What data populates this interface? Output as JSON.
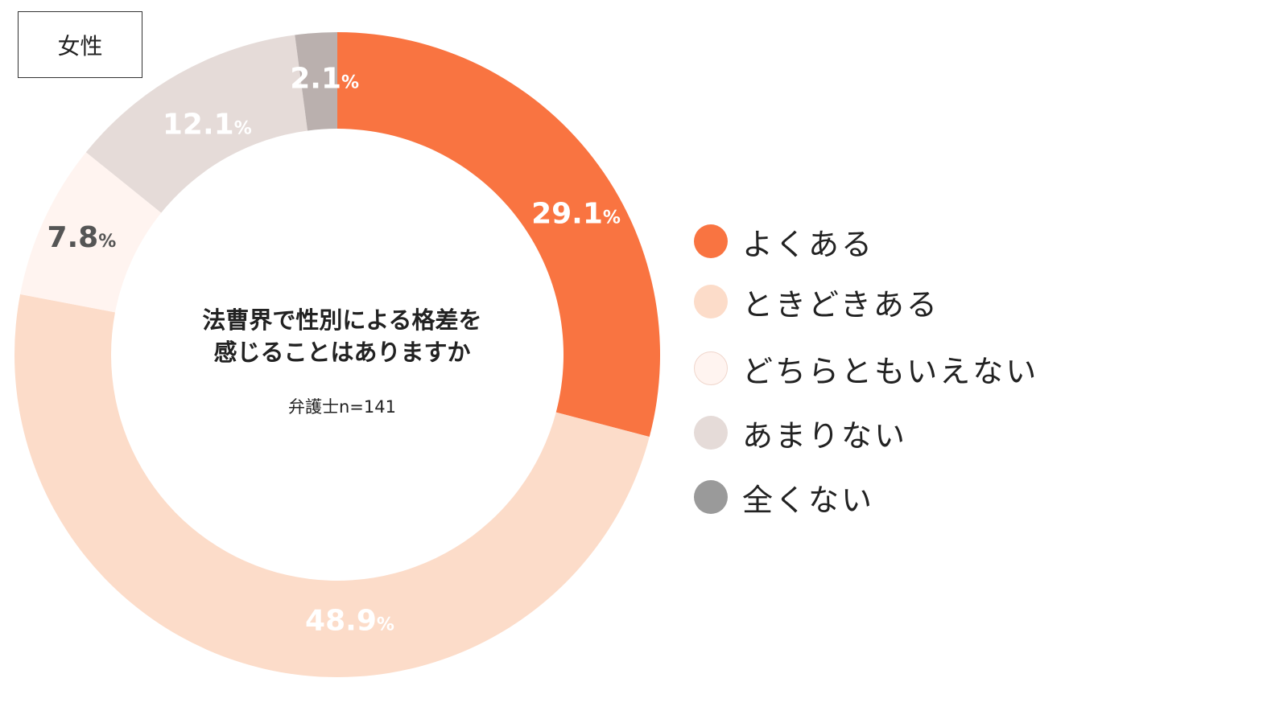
{
  "group_label": "女性",
  "chart_data": {
    "type": "pie",
    "donut": true,
    "center_title_lines": [
      "法曹界で性別による格差を",
      "感じることはありますか"
    ],
    "center_sample": "弁護士n=141",
    "percent_suffix": "%",
    "segments": [
      {
        "label": "よくある",
        "value": 29.1,
        "value_text": "29.1",
        "color": "#f97441",
        "label_color": "#ffffff"
      },
      {
        "label": "ときどきある",
        "value": 48.9,
        "value_text": "48.9",
        "color": "#fcdcc9",
        "label_color": "#ffffff"
      },
      {
        "label": "どちらともいえない",
        "value": 7.8,
        "value_text": "7.8",
        "color": "#fff4f0",
        "label_color": "#555555"
      },
      {
        "label": "あまりない",
        "value": 12.1,
        "value_text": "12.1",
        "color": "#e5dbd8",
        "label_color": "#ffffff"
      },
      {
        "label": "全くない",
        "value": 2.1,
        "value_text": "2.1",
        "color": "#bab0ae",
        "label_color": "#ffffff"
      }
    ],
    "legend": {
      "position": "right",
      "items": [
        {
          "label": "よくある",
          "color": "#f97441"
        },
        {
          "label": "ときどきある",
          "color": "#fcdcc9"
        },
        {
          "label": "どちらともいえない",
          "color": "#fff4f0"
        },
        {
          "label": "あまりない",
          "color": "#e5dbd8"
        },
        {
          "label": "全くない",
          "color": "#9a9a9a"
        }
      ]
    }
  }
}
